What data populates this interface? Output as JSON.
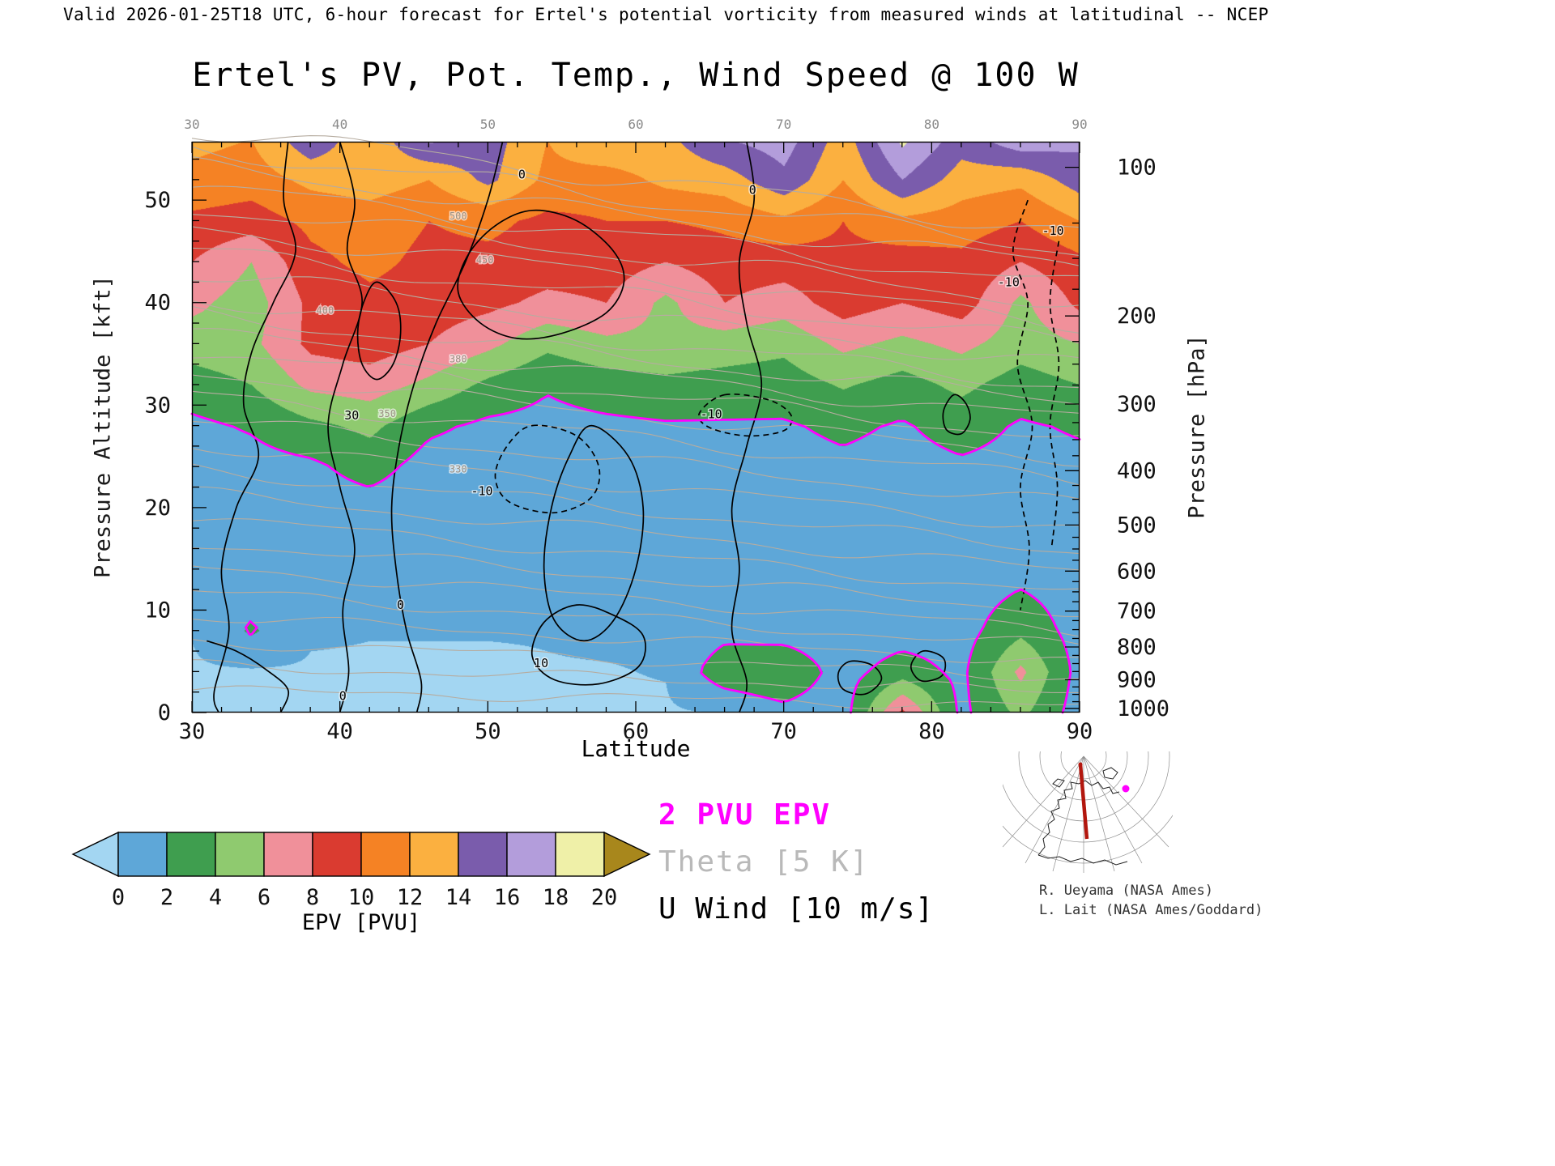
{
  "header": {
    "valid_line": "Valid 2026-01-25T18 UTC, 6-hour forecast for Ertel's potential vorticity from measured winds at latitudinal -- NCEP"
  },
  "title": "Ertel's PV, Pot. Temp., Wind Speed @ 100 W",
  "axes": {
    "x": {
      "label": "Latitude",
      "min": 30,
      "max": 90,
      "major_ticks": [
        30,
        40,
        50,
        60,
        70,
        80,
        90
      ],
      "minor_step": 2
    },
    "y_left": {
      "label": "Pressure Altitude [kft]",
      "min": 0,
      "max": 55.7,
      "major_ticks": [
        0,
        10,
        20,
        30,
        40,
        50
      ],
      "minor_step": 2
    },
    "y_right": {
      "label": "Pressure [hPa]",
      "ticks": [
        {
          "p": 100,
          "z": 53.2
        },
        {
          "p": 200,
          "z": 38.7
        },
        {
          "p": 300,
          "z": 30.1
        },
        {
          "p": 400,
          "z": 23.6
        },
        {
          "p": 500,
          "z": 18.3
        },
        {
          "p": 600,
          "z": 13.8
        },
        {
          "p": 700,
          "z": 9.9
        },
        {
          "p": 800,
          "z": 6.4
        },
        {
          "p": 900,
          "z": 3.2
        },
        {
          "p": 1000,
          "z": 0.4
        }
      ]
    },
    "top": {
      "major_ticks": [
        30,
        40,
        50,
        60,
        70,
        80,
        90
      ]
    }
  },
  "chart_data": {
    "type": "heatmap",
    "title": "Ertel's PV, Pot. Temp., Wind Speed @ 100 W",
    "xlabel": "Latitude",
    "ylabel_left": "Pressure Altitude [kft]",
    "ylabel_right": "Pressure [hPa]",
    "x_range": [
      30,
      90
    ],
    "y_range_kft": [
      0,
      55.7
    ],
    "units": "PVU",
    "lat_grid": [
      30,
      34,
      38,
      42,
      46,
      50,
      54,
      58,
      62,
      66,
      70,
      74,
      78,
      82,
      86,
      90
    ],
    "alt_grid_kft": [
      0,
      4,
      8,
      12,
      16,
      20,
      24,
      28,
      32,
      36,
      40,
      44,
      48,
      52,
      56
    ],
    "epv_pvu": [
      [
        0.3,
        0.3,
        0.3,
        0.3,
        0.3,
        0.3,
        0.3,
        0.4,
        0.4,
        0.6,
        1.5,
        1.0,
        8.5,
        1.5,
        4.5,
        1.0
      ],
      [
        0.4,
        0.4,
        0.4,
        0.4,
        0.4,
        0.4,
        0.5,
        0.5,
        0.6,
        3.0,
        3.5,
        1.2,
        3.0,
        1.5,
        6.5,
        1.2
      ],
      [
        0.6,
        2.2,
        0.7,
        0.6,
        0.6,
        0.6,
        0.6,
        0.7,
        0.7,
        1.5,
        1.2,
        0.9,
        1.0,
        1.2,
        3.5,
        1.1
      ],
      [
        0.7,
        1.4,
        0.8,
        0.7,
        0.7,
        0.7,
        0.7,
        0.7,
        0.7,
        0.9,
        0.9,
        0.9,
        0.9,
        1.0,
        2.0,
        1.0
      ],
      [
        0.8,
        0.9,
        0.9,
        0.8,
        0.8,
        0.8,
        0.8,
        0.8,
        0.8,
        0.9,
        0.9,
        1.0,
        1.0,
        1.1,
        1.3,
        1.1
      ],
      [
        0.9,
        1.0,
        1.1,
        1.2,
        0.9,
        0.9,
        0.9,
        0.9,
        0.9,
        1.0,
        1.0,
        1.1,
        1.1,
        1.3,
        1.3,
        1.3
      ],
      [
        1.1,
        1.3,
        1.6,
        2.8,
        1.2,
        1.0,
        1.0,
        1.1,
        1.1,
        1.2,
        1.3,
        1.6,
        1.3,
        1.7,
        1.4,
        1.6
      ],
      [
        1.6,
        2.2,
        3.5,
        4.5,
        2.4,
        1.6,
        1.4,
        1.6,
        1.8,
        1.8,
        1.8,
        2.4,
        1.8,
        2.8,
        1.8,
        2.2
      ],
      [
        3.0,
        4.0,
        6.5,
        7.0,
        5.5,
        3.5,
        2.2,
        3.0,
        3.5,
        3.2,
        3.0,
        4.2,
        3.2,
        4.5,
        3.0,
        4.0
      ],
      [
        5.0,
        5.5,
        8.5,
        9.0,
        8.0,
        6.5,
        4.5,
        5.5,
        5.5,
        5.0,
        4.5,
        6.5,
        5.5,
        6.5,
        5.0,
        6.0
      ],
      [
        6.5,
        5.0,
        8.5,
        9.5,
        9.0,
        8.5,
        7.5,
        8.0,
        5.5,
        8.0,
        7.0,
        9.0,
        8.0,
        9.0,
        5.5,
        8.5
      ],
      [
        8.0,
        6.0,
        9.5,
        10.5,
        9.5,
        9.5,
        9.0,
        9.0,
        8.0,
        9.0,
        9.0,
        9.5,
        9.0,
        9.5,
        8.0,
        9.5
      ],
      [
        9.5,
        9.0,
        10.5,
        11.0,
        10.0,
        10.5,
        9.5,
        10.0,
        10.0,
        10.5,
        11.5,
        10.0,
        11.5,
        11.0,
        10.0,
        12.0
      ],
      [
        11.5,
        11.0,
        12.5,
        13.0,
        12.0,
        14.5,
        11.5,
        11.0,
        12.5,
        13.0,
        15.5,
        12.0,
        16.0,
        13.0,
        12.5,
        15.0
      ],
      [
        12.5,
        12.0,
        15.5,
        12.5,
        16.5,
        15.0,
        12.0,
        14.0,
        13.5,
        16.0,
        17.0,
        13.0,
        18.5,
        15.0,
        17.5,
        16.5
      ]
    ],
    "colorbar": {
      "label": "EPV [PVU]",
      "tick_labels": [
        0,
        2,
        4,
        6,
        8,
        10,
        12,
        14,
        16,
        18,
        20
      ],
      "colors": [
        "#5ea7d8",
        "#3f9e4f",
        "#8fca6f",
        "#f0909a",
        "#da3b30",
        "#f58224",
        "#fbb040",
        "#7a5cac",
        "#b39ddb",
        "#eff0a8"
      ],
      "under_color": "#a3d6f2",
      "over_color": "#a8871c"
    },
    "pv_contour_level": 2,
    "colors": {
      "pv_line": "#ff00ff",
      "theta_line": "#b6aca0",
      "theta_label": "#9b9184",
      "wind_line": "#000000",
      "frame": "#000000",
      "top_tick_label": "#8a8a8a"
    },
    "theta_contour_interval_K": 5,
    "wind_contour_interval_ms": 10,
    "theta_lines": [
      {
        "z30": 2.2,
        "z90": 0.6
      },
      {
        "z30": 4.6,
        "z90": 2.0
      },
      {
        "z30": 7.0,
        "z90": 3.4
      },
      {
        "z30": 9.4,
        "z90": 4.9
      },
      {
        "z30": 11.8,
        "z90": 6.4
      },
      {
        "z30": 14.2,
        "z90": 8.0
      },
      {
        "z30": 16.6,
        "z90": 9.8
      },
      {
        "z30": 19.0,
        "z90": 11.7
      },
      {
        "z30": 21.4,
        "z90": 13.7
      },
      {
        "z30": 23.8,
        "z90": 15.8
      },
      {
        "z30": 26.2,
        "z90": 18.0,
        "label": "330",
        "f": 0.3
      },
      {
        "z30": 28.6,
        "z90": 20.3
      },
      {
        "z30": 31.0,
        "z90": 22.6,
        "label": "350",
        "f": 0.22
      },
      {
        "z30": 33.2,
        "z90": 24.8
      },
      {
        "z30": 35.2,
        "z90": 26.8
      },
      {
        "z30": 37.0,
        "z90": 28.6,
        "label": "380",
        "f": 0.3
      },
      {
        "z30": 38.8,
        "z90": 30.3
      },
      {
        "z30": 40.5,
        "z90": 31.9,
        "label": "400",
        "f": 0.15
      },
      {
        "z30": 42.8,
        "z90": 34.0
      },
      {
        "z30": 45.0,
        "z90": 36.0
      },
      {
        "z30": 47.2,
        "z90": 38.0,
        "label": "450",
        "f": 0.33
      },
      {
        "z30": 49.3,
        "z90": 39.9
      },
      {
        "z30": 51.3,
        "z90": 41.7,
        "label": "500",
        "f": 0.3
      },
      {
        "z30": 53.2,
        "z90": 43.5
      },
      {
        "z30": 55.1,
        "z90": 45.2
      },
      {
        "z30": 57.0,
        "z90": 47.0
      }
    ],
    "wind_contours": [
      {
        "pts": [
          [
            36.5,
            55.7
          ],
          [
            36.2,
            50
          ],
          [
            37,
            45
          ],
          [
            35.5,
            40
          ],
          [
            34,
            35
          ],
          [
            33.5,
            30
          ],
          [
            34.5,
            25
          ],
          [
            33,
            20
          ],
          [
            32,
            14
          ],
          [
            32.5,
            8
          ],
          [
            31.5,
            2
          ],
          [
            31.8,
            0
          ]
        ],
        "closed": false,
        "dashed": false
      },
      {
        "pts": [
          [
            40,
            55.7
          ],
          [
            41,
            50
          ],
          [
            40.5,
            45
          ],
          [
            41.5,
            40
          ],
          [
            40.2,
            34
          ],
          [
            39.2,
            28
          ],
          [
            40,
            22
          ],
          [
            41,
            16
          ],
          [
            40.2,
            10
          ],
          [
            40.6,
            4
          ],
          [
            40,
            0
          ]
        ],
        "closed": false,
        "dashed": false
      },
      {
        "pts": [
          [
            42.5,
            42
          ],
          [
            43.8,
            40
          ],
          [
            44.1,
            37
          ],
          [
            43.6,
            34
          ],
          [
            42.5,
            32.5
          ],
          [
            41.5,
            34
          ],
          [
            41.2,
            37
          ],
          [
            41.6,
            40
          ]
        ],
        "closed": true,
        "dashed": false
      },
      {
        "pts": [
          [
            53,
            49
          ],
          [
            56,
            48
          ],
          [
            58.5,
            45
          ],
          [
            59.2,
            42
          ],
          [
            58,
            39
          ],
          [
            55,
            37
          ],
          [
            52,
            36.5
          ],
          [
            49.5,
            38
          ],
          [
            48,
            41
          ],
          [
            48.6,
            44.5
          ],
          [
            50.5,
            47.5
          ]
        ],
        "closed": true,
        "dashed": false
      },
      {
        "pts": [
          [
            51,
            55.7
          ],
          [
            50,
            50
          ],
          [
            48.5,
            44
          ],
          [
            46.5,
            38
          ],
          [
            45,
            32
          ],
          [
            44,
            26
          ],
          [
            43.5,
            20
          ],
          [
            43.8,
            14
          ],
          [
            44.5,
            8
          ],
          [
            45.5,
            3
          ],
          [
            45.2,
            0
          ]
        ],
        "closed": false,
        "dashed": false
      },
      {
        "pts": [
          [
            57,
            28
          ],
          [
            59.5,
            25
          ],
          [
            60.5,
            20
          ],
          [
            60,
            14
          ],
          [
            58.5,
            9
          ],
          [
            56.5,
            7
          ],
          [
            54.5,
            9
          ],
          [
            53.8,
            14
          ],
          [
            54.3,
            20
          ],
          [
            55.5,
            25
          ]
        ],
        "closed": true,
        "dashed": false
      },
      {
        "pts": [
          [
            67.5,
            55.7
          ],
          [
            68,
            50
          ],
          [
            67,
            44
          ],
          [
            67.5,
            38
          ],
          [
            68.5,
            32
          ],
          [
            67.5,
            26
          ],
          [
            66.5,
            20
          ],
          [
            67,
            14
          ],
          [
            66.5,
            8
          ],
          [
            67.5,
            3
          ],
          [
            67,
            0
          ]
        ],
        "closed": false,
        "dashed": false
      },
      {
        "pts": [
          [
            56,
            10.5
          ],
          [
            58.5,
            9.5
          ],
          [
            60.5,
            7.5
          ],
          [
            60.2,
            4.5
          ],
          [
            57.5,
            2.8
          ],
          [
            54.5,
            3.2
          ],
          [
            53,
            5.5
          ],
          [
            53.8,
            8.8
          ]
        ],
        "closed": true,
        "dashed": false
      },
      {
        "pts": [
          [
            53,
            28
          ],
          [
            56,
            27
          ],
          [
            57.5,
            24
          ],
          [
            57,
            21
          ],
          [
            54.5,
            19.5
          ],
          [
            51.5,
            20.5
          ],
          [
            50.5,
            23
          ],
          [
            51.3,
            26
          ]
        ],
        "closed": true,
        "dashed": true
      },
      {
        "pts": [
          [
            66,
            31
          ],
          [
            69,
            30.5
          ],
          [
            70.5,
            29
          ],
          [
            70,
            27.5
          ],
          [
            67.5,
            27
          ],
          [
            65,
            27.8
          ],
          [
            64.3,
            29.2
          ]
        ],
        "closed": true,
        "dashed": true
      },
      {
        "pts": [
          [
            86.5,
            50
          ],
          [
            85.5,
            45
          ],
          [
            86.5,
            40
          ],
          [
            85.8,
            34
          ],
          [
            86.8,
            28
          ],
          [
            86,
            22
          ],
          [
            86.6,
            16
          ],
          [
            86,
            10
          ]
        ],
        "closed": false,
        "dashed": true
      },
      {
        "pts": [
          [
            88.6,
            46
          ],
          [
            88,
            40
          ],
          [
            88.6,
            34
          ],
          [
            88,
            28
          ],
          [
            88.5,
            22
          ],
          [
            88.1,
            16
          ]
        ],
        "closed": false,
        "dashed": true
      },
      {
        "pts": [
          [
            81.5,
            31
          ],
          [
            82.3,
            30.2
          ],
          [
            82.6,
            28.6
          ],
          [
            82,
            27.2
          ],
          [
            81,
            27.6
          ],
          [
            80.8,
            29.4
          ]
        ],
        "closed": true,
        "dashed": false
      },
      {
        "pts": [
          [
            74.5,
            5
          ],
          [
            76,
            4.6
          ],
          [
            76.6,
            3.2
          ],
          [
            75.5,
            1.8
          ],
          [
            74,
            2.3
          ],
          [
            73.7,
            3.9
          ]
        ],
        "closed": true,
        "dashed": false
      },
      {
        "pts": [
          [
            79.4,
            6
          ],
          [
            80.8,
            5.3
          ],
          [
            80.7,
            3.6
          ],
          [
            79.3,
            3.1
          ],
          [
            78.6,
            4.5
          ]
        ],
        "closed": true,
        "dashed": false
      },
      {
        "pts": [
          [
            31,
            7
          ],
          [
            33,
            6
          ],
          [
            35,
            4.2
          ],
          [
            36.5,
            2.2
          ],
          [
            36,
            0
          ]
        ],
        "closed": false,
        "dashed": false
      }
    ],
    "wind_labels": [
      {
        "text": "30",
        "at": [
          40.8,
          29
        ]
      },
      {
        "text": "0",
        "at": [
          44.1,
          10.5
        ]
      },
      {
        "text": "0",
        "at": [
          40.2,
          1.6
        ]
      },
      {
        "text": "10",
        "at": [
          53.6,
          4.8
        ]
      },
      {
        "text": "-10",
        "at": [
          49.6,
          21.6
        ]
      },
      {
        "text": "-10",
        "at": [
          65.1,
          29.1
        ]
      },
      {
        "text": "0",
        "at": [
          67.9,
          51
        ]
      },
      {
        "text": "-10",
        "at": [
          85.2,
          42
        ]
      },
      {
        "text": "-10",
        "at": [
          88.2,
          47
        ]
      },
      {
        "text": "0",
        "at": [
          52.3,
          52.5
        ]
      }
    ]
  },
  "legend": {
    "items": [
      {
        "text": "2 PVU EPV",
        "color": "#ff00ff"
      },
      {
        "text": "Theta [5 K]",
        "color": "#b9b9b9"
      },
      {
        "text": "U Wind [10 m/s]",
        "color": "#000000"
      }
    ]
  },
  "credits": {
    "line1": "R. Ueyama (NASA Ames)",
    "line2": "L. Lait (NASA Ames/Goddard)"
  },
  "inset": {
    "description": "polar orthographic locator map with 100W cross-section line"
  }
}
